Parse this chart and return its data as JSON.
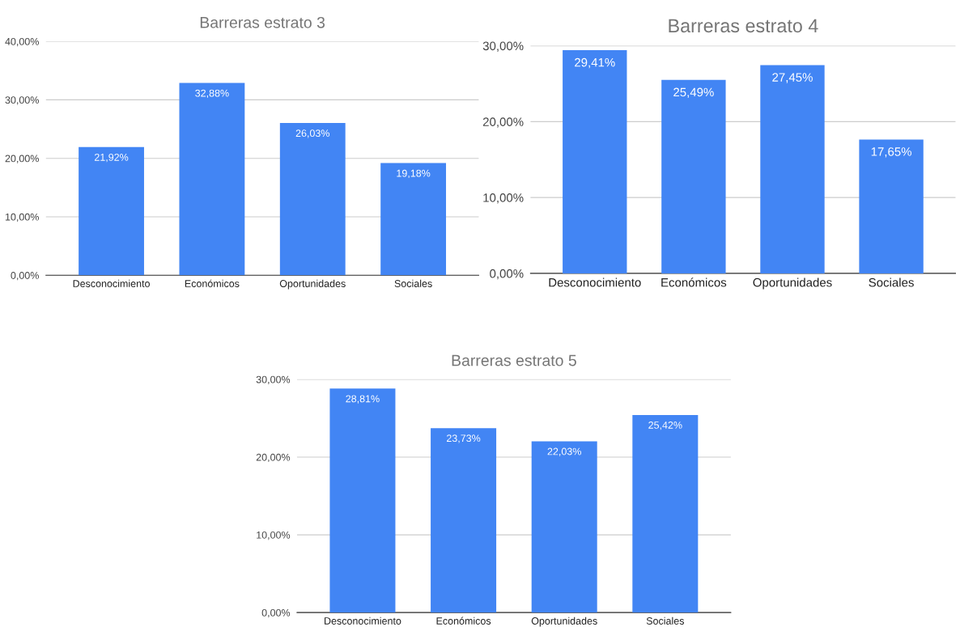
{
  "chart_data": [
    {
      "type": "bar",
      "title": "Barreras estrato 3",
      "categories": [
        "Desconocimiento",
        "Económicos",
        "Oportunidades",
        "Sociales"
      ],
      "color": "#4285f4",
      "values": [
        21.92,
        32.88,
        26.03,
        19.18
      ],
      "value_labels": [
        "21,92%",
        "32,88%",
        "26,03%",
        "19,18%"
      ],
      "ylim": [
        0,
        40
      ],
      "yticks": [
        {
          "value": 0,
          "label": "0,00%"
        },
        {
          "value": 10,
          "label": "10,00%"
        },
        {
          "value": 20,
          "label": "20,00%"
        },
        {
          "value": 30,
          "label": "30,00%"
        },
        {
          "value": 40,
          "label": "40,00%"
        }
      ],
      "grid": "y"
    },
    {
      "type": "bar",
      "title": "Barreras estrato 4",
      "categories": [
        "Desconocimiento",
        "Económicos",
        "Oportunidades",
        "Sociales"
      ],
      "color": "#4285f4",
      "values": [
        29.41,
        25.49,
        27.45,
        17.65
      ],
      "value_labels": [
        "29,41%",
        "25,49%",
        "27,45%",
        "17,65%"
      ],
      "ylim": [
        0,
        30
      ],
      "yticks": [
        {
          "value": 0,
          "label": "0,00%"
        },
        {
          "value": 10,
          "label": "10,00%"
        },
        {
          "value": 20,
          "label": "20,00%"
        },
        {
          "value": 30,
          "label": "30,00%"
        }
      ],
      "grid": "y"
    },
    {
      "type": "bar",
      "title": "Barreras estrato 5",
      "categories": [
        "Desconocimiento",
        "Económicos",
        "Oportunidades",
        "Sociales"
      ],
      "color": "#4285f4",
      "values": [
        28.81,
        23.73,
        22.03,
        25.42
      ],
      "value_labels": [
        "28,81%",
        "23,73%",
        "22,03%",
        "25,42%"
      ],
      "ylim": [
        0,
        30
      ],
      "yticks": [
        {
          "value": 0,
          "label": "0,00%"
        },
        {
          "value": 10,
          "label": "10,00%"
        },
        {
          "value": 20,
          "label": "20,00%"
        },
        {
          "value": 30,
          "label": "30,00%"
        }
      ],
      "grid": "y"
    }
  ]
}
